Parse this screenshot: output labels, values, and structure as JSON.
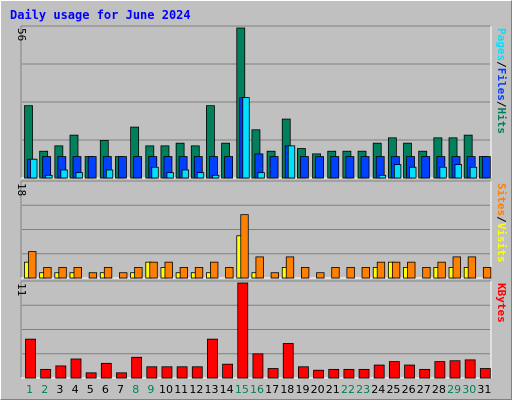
{
  "title": "Daily usage for June 2024",
  "colors": {
    "hits": "#00805c",
    "files": "#0040ff",
    "pages": "#00e0ff",
    "visits": "#ffff00",
    "sites": "#ff8000",
    "kbytes": "#ff0000",
    "title": "#0000ff",
    "weekend_label": "#00805c",
    "weekday_label": "#000000"
  },
  "legends": {
    "top": {
      "pages": "Pages",
      "files": "Files",
      "hits": "Hits",
      "sep": "/"
    },
    "middle": {
      "sites": "Sites",
      "visits": "Visits",
      "sep": "/"
    },
    "bottom": {
      "kbytes": "KBytes"
    }
  },
  "chart_data": [
    {
      "type": "bar",
      "name_hint": "hits-files-pages",
      "max_label": "56",
      "ylim": [
        0,
        56
      ],
      "categories": [
        "1",
        "2",
        "3",
        "4",
        "5",
        "6",
        "7",
        "8",
        "9",
        "10",
        "11",
        "12",
        "13",
        "14",
        "15",
        "16",
        "17",
        "18",
        "19",
        "20",
        "21",
        "22",
        "23",
        "24",
        "25",
        "26",
        "27",
        "28",
        "29",
        "30",
        "31"
      ],
      "weekend_days": [
        1,
        2,
        8,
        9,
        15,
        16,
        22,
        23,
        29,
        30
      ],
      "series": [
        {
          "name": "Hits",
          "values": [
            27,
            10,
            12,
            16,
            8,
            14,
            8,
            19,
            12,
            12,
            13,
            12,
            27,
            13,
            56,
            18,
            10,
            22,
            11,
            9,
            10,
            10,
            10,
            13,
            15,
            13,
            10,
            15,
            15,
            16,
            8
          ]
        },
        {
          "name": "Files",
          "values": [
            7,
            8,
            8,
            8,
            8,
            8,
            8,
            8,
            8,
            8,
            8,
            8,
            8,
            8,
            30,
            9,
            8,
            12,
            8,
            8,
            8,
            8,
            8,
            8,
            8,
            8,
            8,
            8,
            8,
            8,
            8
          ]
        },
        {
          "name": "Pages",
          "values": [
            7,
            1,
            3,
            2,
            0,
            3,
            0,
            0,
            4,
            2,
            3,
            2,
            1,
            0,
            30,
            2,
            0,
            12,
            0,
            0,
            0,
            0,
            0,
            1,
            5,
            4,
            0,
            4,
            5,
            4,
            0
          ]
        }
      ]
    },
    {
      "type": "bar",
      "name_hint": "visits-sites",
      "max_label": "18",
      "ylim": [
        0,
        18
      ],
      "categories": [
        "1",
        "2",
        "3",
        "4",
        "5",
        "6",
        "7",
        "8",
        "9",
        "10",
        "11",
        "12",
        "13",
        "14",
        "15",
        "16",
        "17",
        "18",
        "19",
        "20",
        "21",
        "22",
        "23",
        "24",
        "25",
        "26",
        "27",
        "28",
        "29",
        "30",
        "31"
      ],
      "series": [
        {
          "name": "Visits",
          "values": [
            3,
            1,
            1,
            1,
            0,
            1,
            0,
            1,
            3,
            2,
            1,
            1,
            1,
            0,
            8,
            1,
            0,
            2,
            0,
            0,
            0,
            0,
            0,
            2,
            3,
            2,
            0,
            2,
            2,
            2,
            0
          ]
        },
        {
          "name": "Sites",
          "values": [
            5,
            2,
            2,
            2,
            1,
            2,
            1,
            2,
            3,
            3,
            2,
            2,
            3,
            2,
            12,
            4,
            1,
            4,
            2,
            1,
            2,
            2,
            2,
            3,
            3,
            3,
            2,
            3,
            4,
            4,
            2
          ]
        }
      ]
    },
    {
      "type": "bar",
      "name_hint": "kbytes",
      "max_label": "11",
      "ylim": [
        0,
        11
      ],
      "categories": [
        "1",
        "2",
        "3",
        "4",
        "5",
        "6",
        "7",
        "8",
        "9",
        "10",
        "11",
        "12",
        "13",
        "14",
        "15",
        "16",
        "17",
        "18",
        "19",
        "20",
        "21",
        "22",
        "23",
        "24",
        "25",
        "26",
        "27",
        "28",
        "29",
        "30",
        "31"
      ],
      "series": [
        {
          "name": "KBytes",
          "values": [
            4.5,
            1,
            1.4,
            2.2,
            0.6,
            1.7,
            0.6,
            2.4,
            1.3,
            1.3,
            1.3,
            1.3,
            4.5,
            1.6,
            11,
            2.8,
            1.1,
            4.0,
            1.3,
            0.9,
            1.0,
            1.0,
            1.0,
            1.5,
            1.9,
            1.5,
            1.0,
            1.9,
            2.0,
            2.1,
            1.1
          ]
        }
      ]
    }
  ]
}
